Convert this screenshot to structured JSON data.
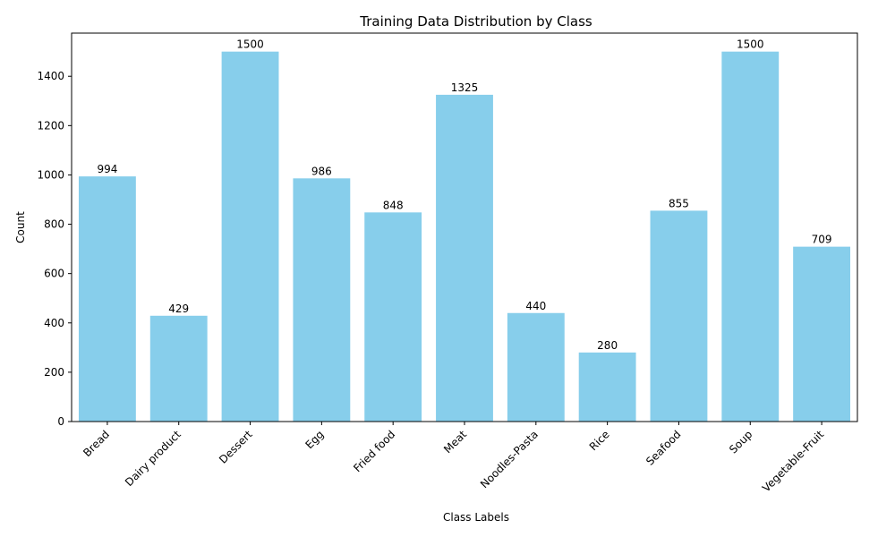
{
  "chart_data": {
    "type": "bar",
    "title": "Training Data Distribution by Class",
    "xlabel": "Class Labels",
    "ylabel": "Count",
    "categories": [
      "Bread",
      "Dairy product",
      "Dessert",
      "Egg",
      "Fried food",
      "Meat",
      "Noodles-Pasta",
      "Rice",
      "Seafood",
      "Soup",
      "Vegetable-Fruit"
    ],
    "values": [
      994,
      429,
      1500,
      986,
      848,
      1325,
      440,
      280,
      855,
      1500,
      709
    ],
    "yticks": [
      0,
      200,
      400,
      600,
      800,
      1000,
      1200,
      1400
    ],
    "ylim": [
      0,
      1575
    ],
    "bar_color": "#87ceeb",
    "grid": false,
    "data_labels": true
  }
}
